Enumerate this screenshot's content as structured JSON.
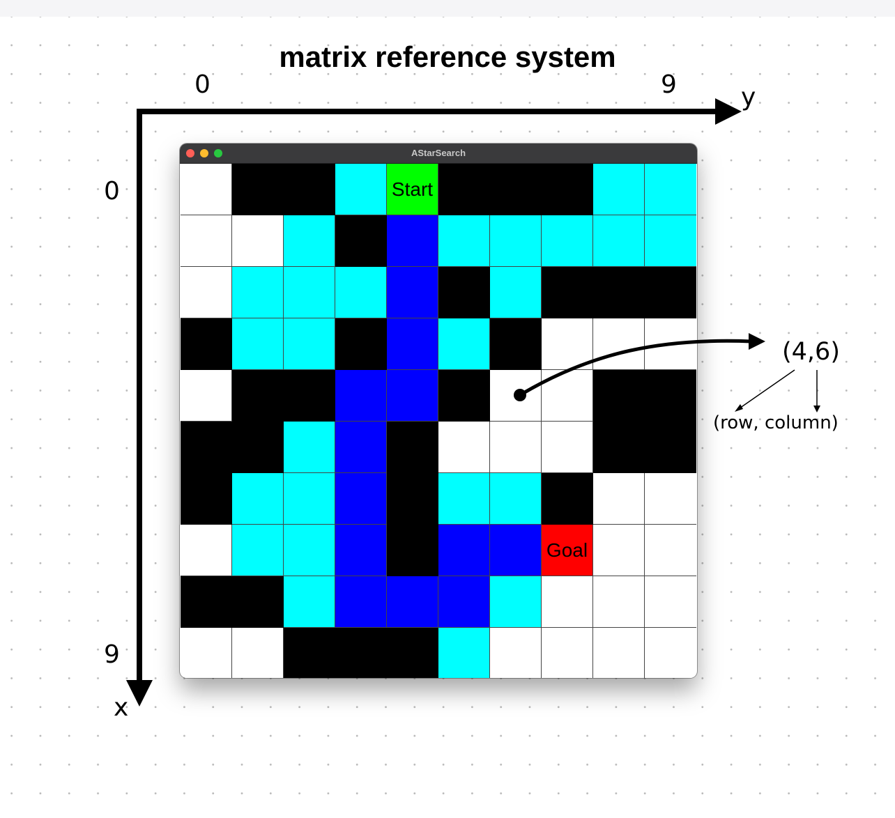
{
  "title": "matrix reference system",
  "axes": {
    "top_start": "0",
    "top_end": "9",
    "top_axis_name": "y",
    "left_start": "0",
    "left_end": "9",
    "left_axis_name": "x"
  },
  "window": {
    "title": "AStarSearch"
  },
  "grid": {
    "rows": 10,
    "cols": 10,
    "legend": {
      "0": "empty",
      "1": "wall",
      "2": "visited",
      "3": "path",
      "4": "start",
      "5": "goal"
    },
    "cells": [
      [
        0,
        1,
        1,
        2,
        4,
        1,
        1,
        1,
        2,
        2
      ],
      [
        0,
        0,
        2,
        1,
        3,
        2,
        2,
        2,
        2,
        2
      ],
      [
        0,
        2,
        2,
        2,
        3,
        1,
        2,
        1,
        1,
        1
      ],
      [
        1,
        2,
        2,
        1,
        3,
        2,
        1,
        0,
        0,
        0
      ],
      [
        0,
        1,
        1,
        3,
        3,
        1,
        0,
        0,
        1,
        1
      ],
      [
        1,
        1,
        2,
        3,
        1,
        0,
        0,
        0,
        1,
        1
      ],
      [
        1,
        2,
        2,
        3,
        1,
        2,
        2,
        1,
        0,
        0
      ],
      [
        0,
        2,
        2,
        3,
        1,
        3,
        3,
        5,
        0,
        0
      ],
      [
        1,
        1,
        2,
        3,
        3,
        3,
        2,
        0,
        0,
        0
      ],
      [
        0,
        0,
        1,
        1,
        1,
        2,
        0,
        0,
        0,
        0
      ]
    ],
    "start_label": "Start",
    "goal_label": "Goal",
    "colors": {
      "empty": "#ffffff",
      "wall": "#000000",
      "visited": "#00ffff",
      "path": "#0000ff",
      "start": "#00ff00",
      "goal": "#ff0000"
    }
  },
  "annotation": {
    "coordinate": "(4,6)",
    "meaning": "(row, column)",
    "target_row": 4,
    "target_col": 6
  }
}
